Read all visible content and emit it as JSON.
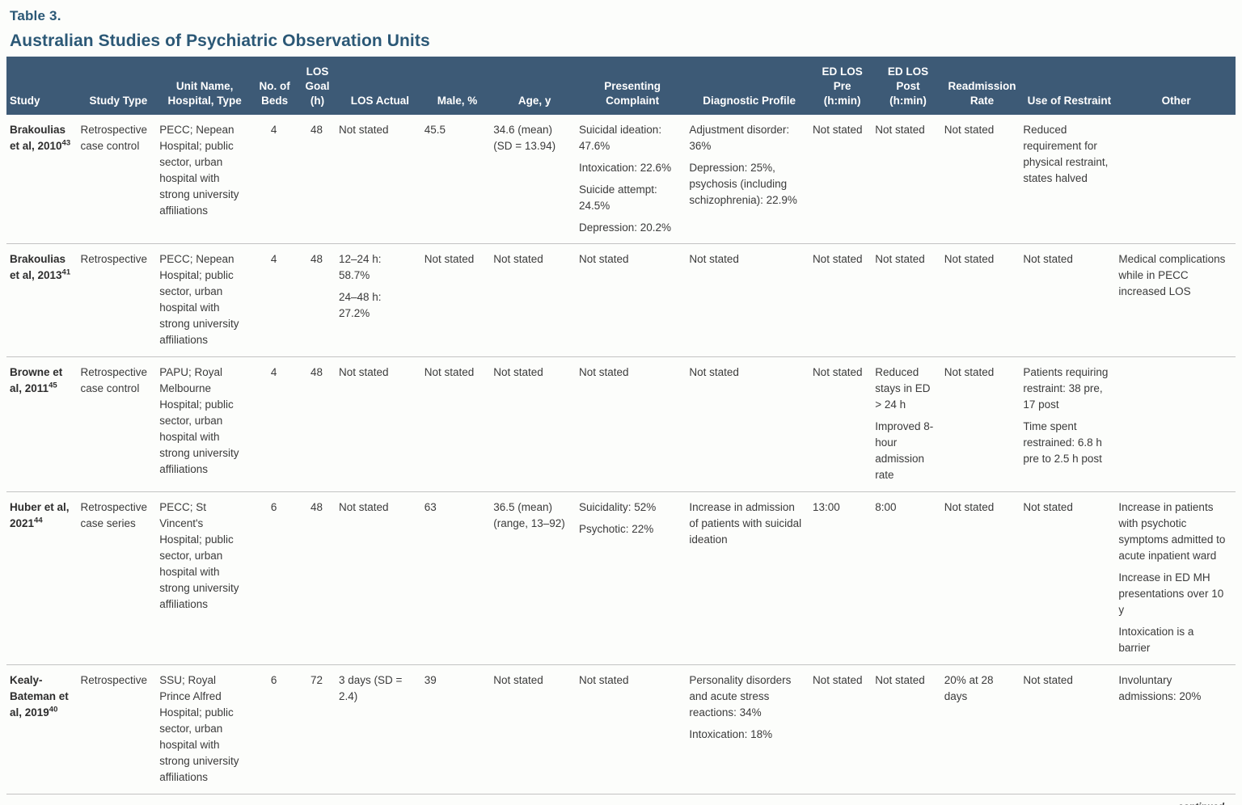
{
  "page": {
    "table_label": "Table 3.",
    "title": "Australian Studies of Psychiatric Observation Units",
    "continued": "continued"
  },
  "colors": {
    "header_bg": "#3d5a76",
    "title_text": "#2b5876",
    "bottom_rule": "#3d5a76"
  },
  "table": {
    "columns": [
      {
        "key": "study",
        "label": "Study"
      },
      {
        "key": "study_type",
        "label": "Study Type"
      },
      {
        "key": "unit",
        "label": "Unit Name,\nHospital, Type"
      },
      {
        "key": "beds",
        "label": "No. of\nBeds"
      },
      {
        "key": "los_goal",
        "label": "LOS\nGoal\n(h)"
      },
      {
        "key": "los_actual",
        "label": "LOS Actual"
      },
      {
        "key": "male",
        "label": "Male, %"
      },
      {
        "key": "age",
        "label": "Age, y"
      },
      {
        "key": "presenting",
        "label": "Presenting\nComplaint"
      },
      {
        "key": "diagnostic",
        "label": "Diagnostic Profile"
      },
      {
        "key": "ed_pre",
        "label": "ED LOS\nPre\n(h:min)"
      },
      {
        "key": "ed_post",
        "label": "ED LOS\nPost\n(h:min)"
      },
      {
        "key": "readmission",
        "label": "Readmission\nRate"
      },
      {
        "key": "restraint",
        "label": "Use of Restraint"
      },
      {
        "key": "other",
        "label": "Other"
      }
    ],
    "rows": [
      {
        "study": {
          "label": "Brakoulias et al, 2010",
          "ref": "43"
        },
        "cells": {
          "study_type": "Retrospective case control",
          "unit": "PECC; Nepean Hospital; public sector, urban hospital with strong university affiliations",
          "beds": "4",
          "los_goal": "48",
          "los_actual": "Not stated",
          "male": "45.5",
          "age": "34.6 (mean) (SD = 13.94)",
          "presenting": [
            "Suicidal ideation: 47.6%",
            "Intoxication: 22.6%",
            "Suicide attempt: 24.5%",
            "Depression: 20.2%"
          ],
          "diagnostic": [
            "Adjustment disorder: 36%",
            "Depression: 25%, psychosis (including schizophrenia): 22.9%"
          ],
          "ed_pre": "Not stated",
          "ed_post": "Not stated",
          "readmission": "Not stated",
          "restraint": "Reduced requirement for physical restraint, states halved",
          "other": ""
        }
      },
      {
        "study": {
          "label": "Brakoulias et al, 2013",
          "ref": "41"
        },
        "cells": {
          "study_type": "Retrospective",
          "unit": "PECC; Nepean Hospital; public sector, urban hospital with strong university affiliations",
          "beds": "4",
          "los_goal": "48",
          "los_actual": [
            "12–24 h: 58.7%",
            "24–48 h: 27.2%"
          ],
          "male": "Not stated",
          "age": "Not stated",
          "presenting": "Not stated",
          "diagnostic": "Not stated",
          "ed_pre": "Not stated",
          "ed_post": "Not stated",
          "readmission": "Not stated",
          "restraint": "Not stated",
          "other": "Medical complications while in PECC increased LOS"
        }
      },
      {
        "study": {
          "label": "Browne et al, 2011",
          "ref": "45"
        },
        "cells": {
          "study_type": "Retrospective case control",
          "unit": "PAPU; Royal Melbourne Hospital; public sector, urban hospital with strong university affiliations",
          "beds": "4",
          "los_goal": "48",
          "los_actual": "Not stated",
          "male": "Not stated",
          "age": "Not stated",
          "presenting": "Not stated",
          "diagnostic": "Not stated",
          "ed_pre": "Not stated",
          "ed_post": [
            "Reduced stays in ED > 24 h",
            "Improved 8-hour admission rate"
          ],
          "readmission": "Not stated",
          "restraint": [
            "Patients requiring restraint: 38 pre, 17 post",
            "Time spent restrained: 6.8 h pre to 2.5 h post"
          ],
          "other": ""
        }
      },
      {
        "study": {
          "label": "Huber et al, 2021",
          "ref": "44"
        },
        "cells": {
          "study_type": "Retrospective case series",
          "unit": "PECC; St Vincent's Hospital; public sector, urban hospital with strong university affiliations",
          "beds": "6",
          "los_goal": "48",
          "los_actual": "Not stated",
          "male": "63",
          "age": "36.5 (mean) (range, 13–92)",
          "presenting": [
            "Suicidality: 52%",
            "Psychotic: 22%"
          ],
          "diagnostic": "Increase in admission of patients with suicidal ideation",
          "ed_pre": "13:00",
          "ed_post": "8:00",
          "readmission": "Not stated",
          "restraint": "Not stated",
          "other": [
            "Increase in patients with psychotic symptoms admitted to acute inpatient ward",
            "Increase in ED MH presentations over 10 y",
            "Intoxication is a barrier"
          ]
        }
      },
      {
        "study": {
          "label": "Kealy-Bateman et al, 2019",
          "ref": "40"
        },
        "cells": {
          "study_type": "Retrospective",
          "unit": "SSU; Royal Prince Alfred Hospital; public sector, urban hospital with strong university affiliations",
          "beds": "6",
          "los_goal": "72",
          "los_actual": "3 days (SD = 2.4)",
          "male": "39",
          "age": "Not stated",
          "presenting": "Not stated",
          "diagnostic": [
            "Personality disorders and acute stress reactions: 34%",
            "Intoxication: 18%"
          ],
          "ed_pre": "Not stated",
          "ed_post": "Not stated",
          "readmission": "20% at 28 days",
          "restraint": "Not stated",
          "other": "Involuntary admissions: 20%"
        }
      }
    ]
  }
}
